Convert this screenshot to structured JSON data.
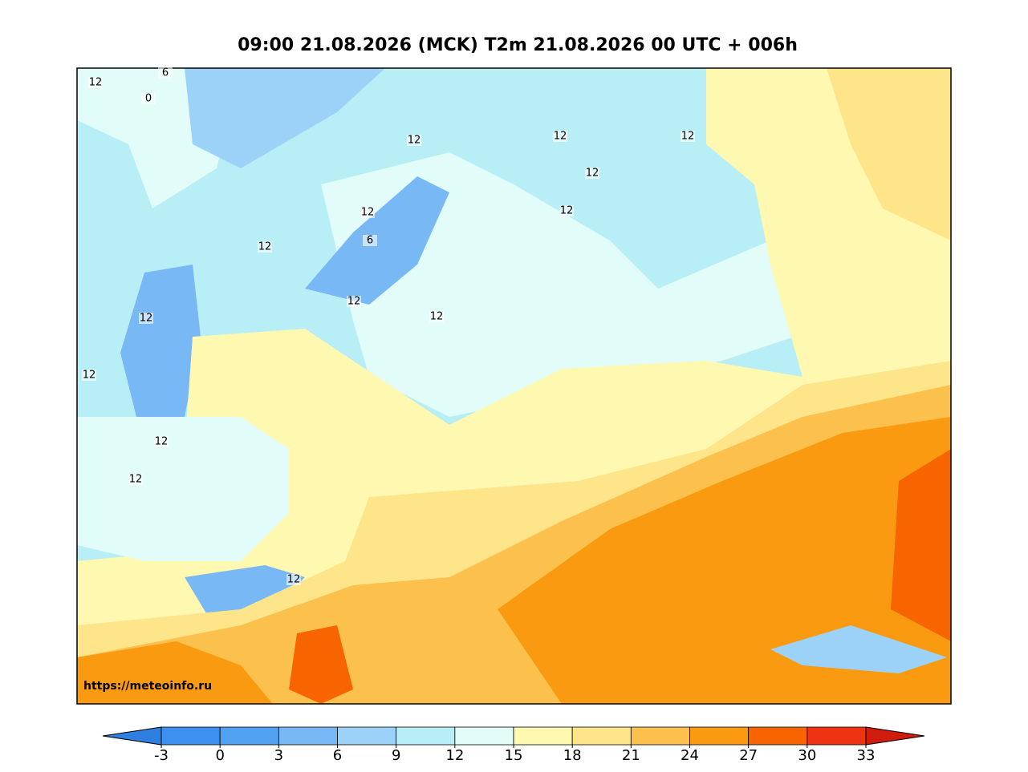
{
  "title": "09:00 21.08.2026 (MCK) T2m 21.08.2026 00 UTC + 006h",
  "watermark": "https://meteoinfo.ru",
  "contour_labels": [
    "12",
    "6",
    "0",
    "12",
    "12",
    "12",
    "12",
    "12",
    "12",
    "6",
    "12",
    "12",
    "12",
    "12",
    "12",
    "12",
    "12",
    "12"
  ],
  "colorbar": {
    "ticks": [
      -3,
      0,
      3,
      6,
      9,
      12,
      15,
      18,
      21,
      24,
      27,
      30,
      33
    ],
    "colors": [
      "#2f7fe0",
      "#3d8ff0",
      "#52a2f2",
      "#78b8f5",
      "#9dd2f8",
      "#b8eef5",
      "#e2fcfa",
      "#fff8b0",
      "#fee58a",
      "#fcc04c",
      "#fa9a10",
      "#f86400",
      "#ef3212",
      "#d01c0c"
    ]
  }
}
